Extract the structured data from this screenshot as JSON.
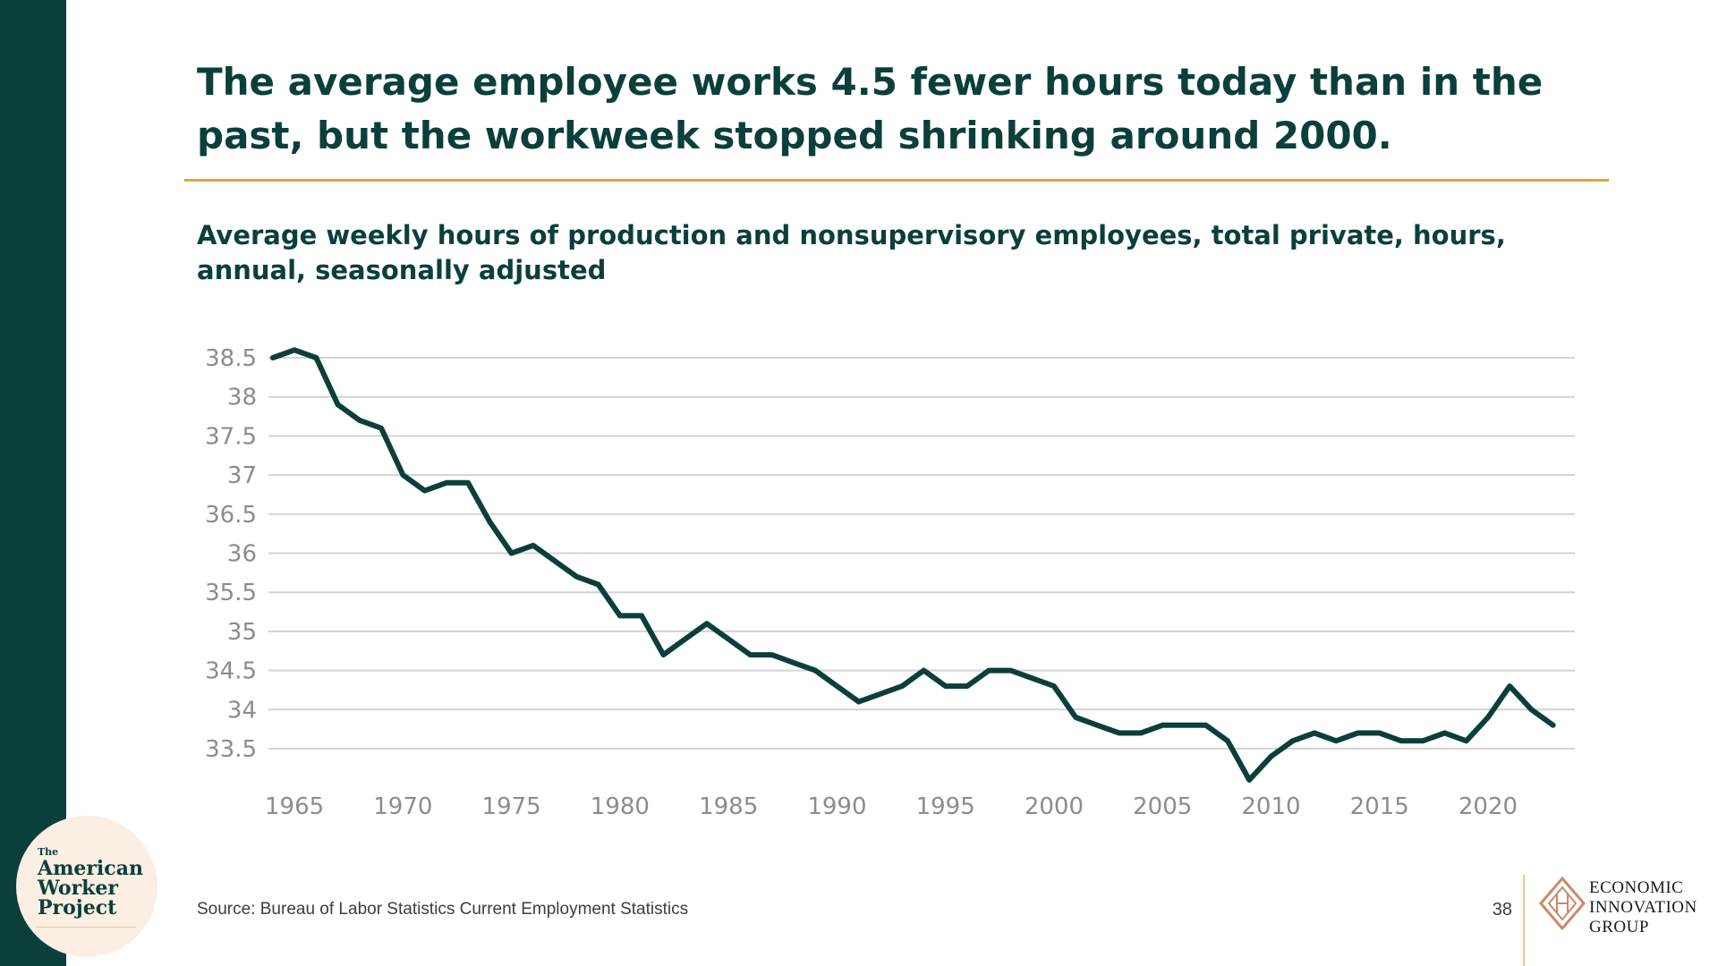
{
  "slide": {
    "headline": "The average employee works 4.5 fewer hours today than in the past, but the workweek stopped shrinking around 2000.",
    "source": "Source: Bureau of Labor Statistics Current Employment Statistics",
    "page_number": "38"
  },
  "branding": {
    "awp_the": "The",
    "awp_line1": "American",
    "awp_line2": "Worker",
    "awp_line3": "Project",
    "eig_line1": "ECONOMIC",
    "eig_line2": "INNOVATION",
    "eig_line3": "GROUP"
  },
  "colors": {
    "line": "#0b3f3b",
    "grid": "#d3d3d3",
    "tick_text": "#8c8c8c",
    "accent_gold": "#d9a93a",
    "sidebar": "#0b3f3b"
  },
  "chart_data": {
    "type": "line",
    "title": "Average weekly hours of production and nonsupervisory employees, total private, hours, annual, seasonally adjusted",
    "xlabel": "",
    "ylabel": "",
    "xlim": [
      1963.8,
      2024
    ],
    "ylim": [
      33.5,
      38.5
    ],
    "grid": "horizontal",
    "legend": "none",
    "y_ticks": [
      38.5,
      38,
      37.5,
      37,
      36.5,
      36,
      35.5,
      35,
      34.5,
      34,
      33.5
    ],
    "y_tick_labels": [
      "38.5",
      "38",
      "37.5",
      "37",
      "36.5",
      "36",
      "35.5",
      "35",
      "34.5",
      "34",
      "33.5"
    ],
    "x_ticks": [
      1965,
      1970,
      1975,
      1980,
      1985,
      1990,
      1995,
      2000,
      2005,
      2010,
      2015,
      2020
    ],
    "x_tick_labels": [
      "1965",
      "1970",
      "1975",
      "1980",
      "1985",
      "1990",
      "1995",
      "2000",
      "2005",
      "2010",
      "2015",
      "2020"
    ],
    "x": [
      1964,
      1965,
      1966,
      1967,
      1968,
      1969,
      1970,
      1971,
      1972,
      1973,
      1974,
      1975,
      1976,
      1977,
      1978,
      1979,
      1980,
      1981,
      1982,
      1983,
      1984,
      1985,
      1986,
      1987,
      1988,
      1989,
      1990,
      1991,
      1992,
      1993,
      1994,
      1995,
      1996,
      1997,
      1998,
      1999,
      2000,
      2001,
      2002,
      2003,
      2004,
      2005,
      2006,
      2007,
      2008,
      2009,
      2010,
      2011,
      2012,
      2013,
      2014,
      2015,
      2016,
      2017,
      2018,
      2019,
      2020,
      2021,
      2022,
      2023
    ],
    "values": [
      38.5,
      38.6,
      38.5,
      37.9,
      37.7,
      37.6,
      37.0,
      36.8,
      36.9,
      36.9,
      36.4,
      36.0,
      36.1,
      35.9,
      35.7,
      35.6,
      35.2,
      35.2,
      34.7,
      34.9,
      35.1,
      34.9,
      34.7,
      34.7,
      34.6,
      34.5,
      34.3,
      34.1,
      34.2,
      34.3,
      34.5,
      34.3,
      34.3,
      34.5,
      34.5,
      34.4,
      34.3,
      33.9,
      33.8,
      33.7,
      33.7,
      33.8,
      33.8,
      33.8,
      33.6,
      33.1,
      33.4,
      33.6,
      33.7,
      33.6,
      33.7,
      33.7,
      33.6,
      33.6,
      33.7,
      33.6,
      33.9,
      34.3,
      34.0,
      33.8
    ]
  }
}
